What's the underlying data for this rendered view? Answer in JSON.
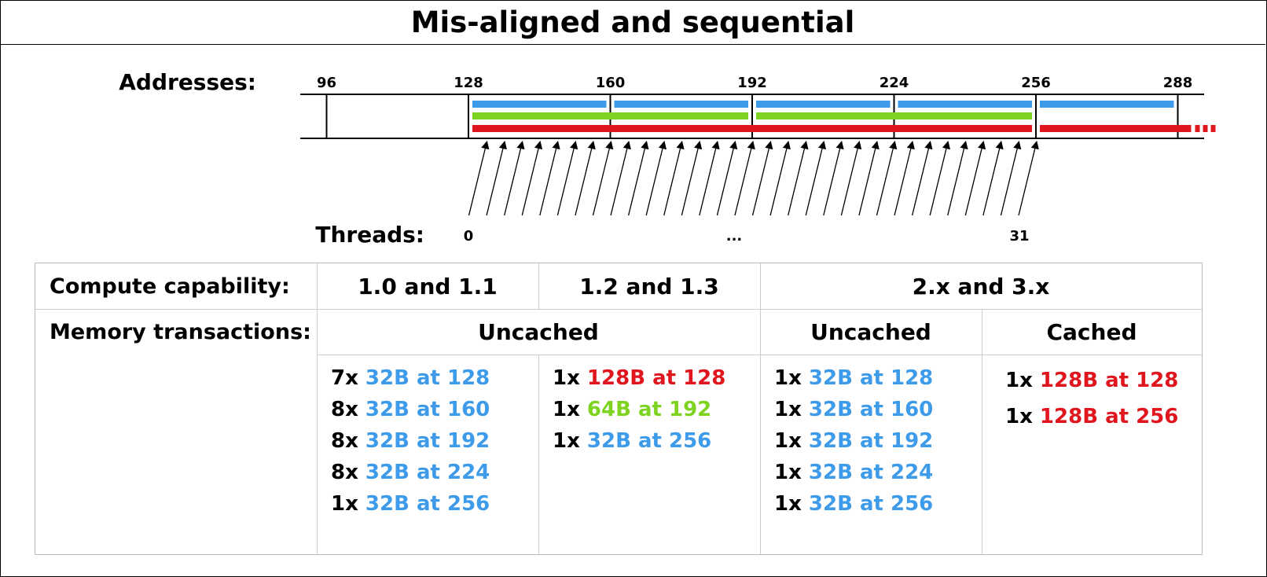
{
  "title": "Mis-aligned and sequential",
  "addresses_label": "Addresses:",
  "address_ticks": [
    "96",
    "128",
    "160",
    "192",
    "224",
    "256",
    "288"
  ],
  "threads_label": "Threads:",
  "thread_labels": {
    "first": "0",
    "middle": "...",
    "last": "31"
  },
  "colors": {
    "blue": "#3d9be9",
    "green": "#7ed321",
    "red": "#e0161f",
    "black": "#000000"
  },
  "table": {
    "capability_label": "Compute capability:",
    "cap_10": "1.0 and 1.1",
    "cap_12": "1.2 and 1.3",
    "cap_2x": "2.x and 3.x",
    "transactions_label": "Memory transactions:",
    "uncached_a": "Uncached",
    "uncached_b": "Uncached",
    "cached": "Cached"
  },
  "transactions": {
    "cap_10": [
      {
        "count": "7x",
        "desc": "32B at 128",
        "color": "blue"
      },
      {
        "count": "8x",
        "desc": "32B at 160",
        "color": "blue"
      },
      {
        "count": "8x",
        "desc": "32B at 192",
        "color": "blue"
      },
      {
        "count": "8x",
        "desc": "32B at 224",
        "color": "blue"
      },
      {
        "count": "1x",
        "desc": "32B at 256",
        "color": "blue"
      }
    ],
    "cap_12": [
      {
        "count": "1x",
        "desc": "128B at 128",
        "color": "red"
      },
      {
        "count": "1x",
        "desc": "64B at 192",
        "color": "green"
      },
      {
        "count": "1x",
        "desc": "32B at 256",
        "color": "blue"
      }
    ],
    "cap_2x_uncached": [
      {
        "count": "1x",
        "desc": "32B at 128",
        "color": "blue"
      },
      {
        "count": "1x",
        "desc": "32B at 160",
        "color": "blue"
      },
      {
        "count": "1x",
        "desc": "32B at 192",
        "color": "blue"
      },
      {
        "count": "1x",
        "desc": "32B at 224",
        "color": "blue"
      },
      {
        "count": "1x",
        "desc": "32B at 256",
        "color": "blue"
      }
    ],
    "cap_2x_cached": [
      {
        "count": "1x",
        "desc": "128B at 128",
        "color": "red"
      },
      {
        "count": "1x",
        "desc": "128B at 256",
        "color": "red"
      }
    ]
  }
}
